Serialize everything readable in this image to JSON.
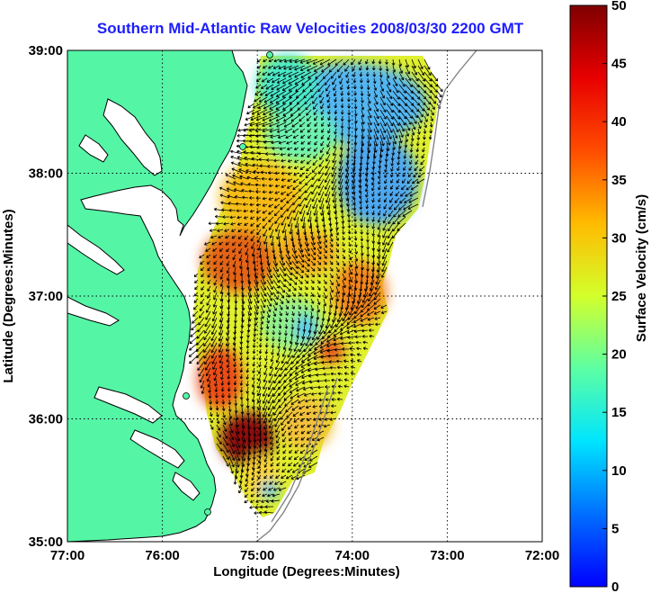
{
  "title": "Southern Mid-Atlantic Raw Velocities 2008/03/30 2200 GMT",
  "chart_data": {
    "type": "heatmap",
    "title": "Southern Mid-Atlantic Raw Velocities 2008/03/30 2200 GMT",
    "xlabel": "Longitude (Degrees:Minutes)",
    "ylabel": "Latitude (Degrees:Minutes)",
    "x_ticks": [
      "77:00",
      "76:00",
      "75:00",
      "74:00",
      "73:00",
      "72:00"
    ],
    "y_ticks": [
      "39:00",
      "38:00",
      "37:00",
      "36:00",
      "35:00"
    ],
    "xlim": [
      -77,
      -72
    ],
    "ylim": [
      35,
      39
    ],
    "grid": true,
    "colorbar": {
      "label": "Surface Velocity (cm/s)",
      "range": [
        0,
        50
      ],
      "ticks": [
        "50",
        "45",
        "40",
        "35",
        "30",
        "25",
        "20",
        "15",
        "10",
        "5",
        "0"
      ]
    },
    "colors": {
      "land": "#55f5a6",
      "title": "#1d1dff"
    }
  }
}
